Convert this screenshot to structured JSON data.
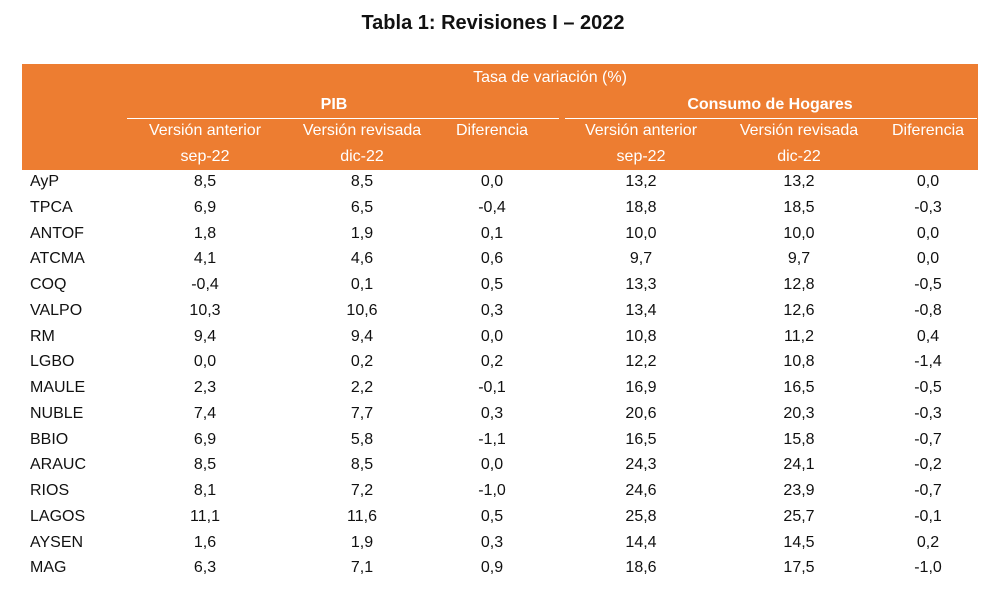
{
  "title": "Tabla 1: Revisiones I – 2022",
  "table": {
    "group_header": "Tasa de variación (%)",
    "groups": [
      "PIB",
      "Consumo de Hogares"
    ],
    "columns": [
      {
        "label": "Versión anterior",
        "period": "sep-22"
      },
      {
        "label": "Versión revisada",
        "period": "dic-22"
      },
      {
        "label": "Diferencia"
      },
      {
        "label": "Versión anterior",
        "period": "sep-22"
      },
      {
        "label": "Versión revisada",
        "period": "dic-22"
      },
      {
        "label": "Diferencia"
      }
    ],
    "rows": [
      [
        "AyP",
        "8,5",
        "8,5",
        "0,0",
        "13,2",
        "13,2",
        "0,0"
      ],
      [
        "TPCA",
        "6,9",
        "6,5",
        "-0,4",
        "18,8",
        "18,5",
        "-0,3"
      ],
      [
        "ANTOF",
        "1,8",
        "1,9",
        "0,1",
        "10,0",
        "10,0",
        "0,0"
      ],
      [
        "ATCMA",
        "4,1",
        "4,6",
        "0,6",
        "9,7",
        "9,7",
        "0,0"
      ],
      [
        "COQ",
        "-0,4",
        "0,1",
        "0,5",
        "13,3",
        "12,8",
        "-0,5"
      ],
      [
        "VALPO",
        "10,3",
        "10,6",
        "0,3",
        "13,4",
        "12,6",
        "-0,8"
      ],
      [
        "RM",
        "9,4",
        "9,4",
        "0,0",
        "10,8",
        "11,2",
        "0,4"
      ],
      [
        "LGBO",
        "0,0",
        "0,2",
        "0,2",
        "12,2",
        "10,8",
        "-1,4"
      ],
      [
        "MAULE",
        "2,3",
        "2,2",
        "-0,1",
        "16,9",
        "16,5",
        "-0,5"
      ],
      [
        "NUBLE",
        "7,4",
        "7,7",
        "0,3",
        "20,6",
        "20,3",
        "-0,3"
      ],
      [
        "BBIO",
        "6,9",
        "5,8",
        "-1,1",
        "16,5",
        "15,8",
        "-0,7"
      ],
      [
        "ARAUC",
        "8,5",
        "8,5",
        "0,0",
        "24,3",
        "24,1",
        "-0,2"
      ],
      [
        "RIOS",
        "8,1",
        "7,2",
        "-1,0",
        "24,6",
        "23,9",
        "-0,7"
      ],
      [
        "LAGOS",
        "11,1",
        "11,6",
        "0,5",
        "25,8",
        "25,7",
        "-0,1"
      ],
      [
        "AYSEN",
        "1,6",
        "1,9",
        "0,3",
        "14,4",
        "14,5",
        "0,2"
      ],
      [
        "MAG",
        "6,3",
        "7,1",
        "0,9",
        "18,6",
        "17,5",
        "-1,0"
      ]
    ]
  }
}
